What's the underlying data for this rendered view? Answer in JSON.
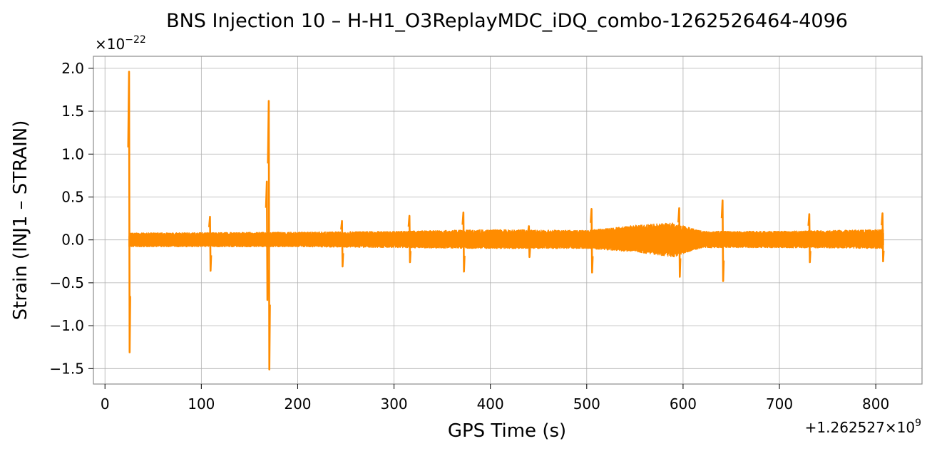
{
  "chart_data": {
    "type": "line",
    "title": "BNS Injection 10 – H-H1_O3ReplayMDC_iDQ_combo-1262526464-4096",
    "xlabel": "GPS Time (s)",
    "ylabel": "Strain (INJ1 – STRAIN)",
    "x_offset_label": "+1.262527×10",
    "x_offset_exponent": "9",
    "y_scale_label": "×10",
    "y_scale_exponent": "−22",
    "xlim": [
      -12,
      848
    ],
    "ylim": [
      -1.68,
      2.14
    ],
    "x_ticks": [
      0,
      100,
      200,
      300,
      400,
      500,
      600,
      700,
      800
    ],
    "x_tick_labels": [
      "0",
      "100",
      "200",
      "300",
      "400",
      "500",
      "600",
      "700",
      "800"
    ],
    "y_ticks": [
      2.0,
      1.5,
      1.0,
      0.5,
      0.0,
      -0.5,
      -1.0,
      -1.5
    ],
    "y_tick_labels": [
      "2.0",
      "1.5",
      "1.0",
      "0.5",
      "0.0",
      "−0.5",
      "−1.0",
      "−1.5"
    ],
    "grid": true,
    "line_color": "#ff8c00",
    "series": [
      {
        "color": "#ff8c00",
        "x_range": [
          25,
          808
        ],
        "baseline_envelope": [
          {
            "x": 25,
            "upper": 0.08,
            "lower": -0.08
          },
          {
            "x": 200,
            "upper": 0.09,
            "lower": -0.08
          },
          {
            "x": 300,
            "upper": 0.1,
            "lower": -0.09
          },
          {
            "x": 400,
            "upper": 0.12,
            "lower": -0.1
          },
          {
            "x": 500,
            "upper": 0.11,
            "lower": -0.1
          },
          {
            "x": 550,
            "upper": 0.17,
            "lower": -0.14
          },
          {
            "x": 590,
            "upper": 0.2,
            "lower": -0.2
          },
          {
            "x": 620,
            "upper": 0.1,
            "lower": -0.09
          },
          {
            "x": 700,
            "upper": 0.1,
            "lower": -0.09
          },
          {
            "x": 808,
            "upper": 0.12,
            "lower": -0.1
          }
        ],
        "spikes": [
          {
            "x": 25,
            "max": 1.96,
            "min": -1.31
          },
          {
            "x": 109,
            "max": 0.27,
            "min": -0.36
          },
          {
            "x": 168,
            "max": 0.68,
            "min": -0.7
          },
          {
            "x": 170,
            "max": 1.62,
            "min": -1.51
          },
          {
            "x": 246,
            "max": 0.22,
            "min": -0.31
          },
          {
            "x": 316,
            "max": 0.28,
            "min": -0.26
          },
          {
            "x": 372,
            "max": 0.32,
            "min": -0.37
          },
          {
            "x": 440,
            "max": 0.16,
            "min": -0.2
          },
          {
            "x": 505,
            "max": 0.36,
            "min": -0.38
          },
          {
            "x": 596,
            "max": 0.37,
            "min": -0.43
          },
          {
            "x": 641,
            "max": 0.46,
            "min": -0.48
          },
          {
            "x": 731,
            "max": 0.3,
            "min": -0.26
          },
          {
            "x": 807,
            "max": 0.31,
            "min": -0.25
          }
        ]
      }
    ]
  }
}
